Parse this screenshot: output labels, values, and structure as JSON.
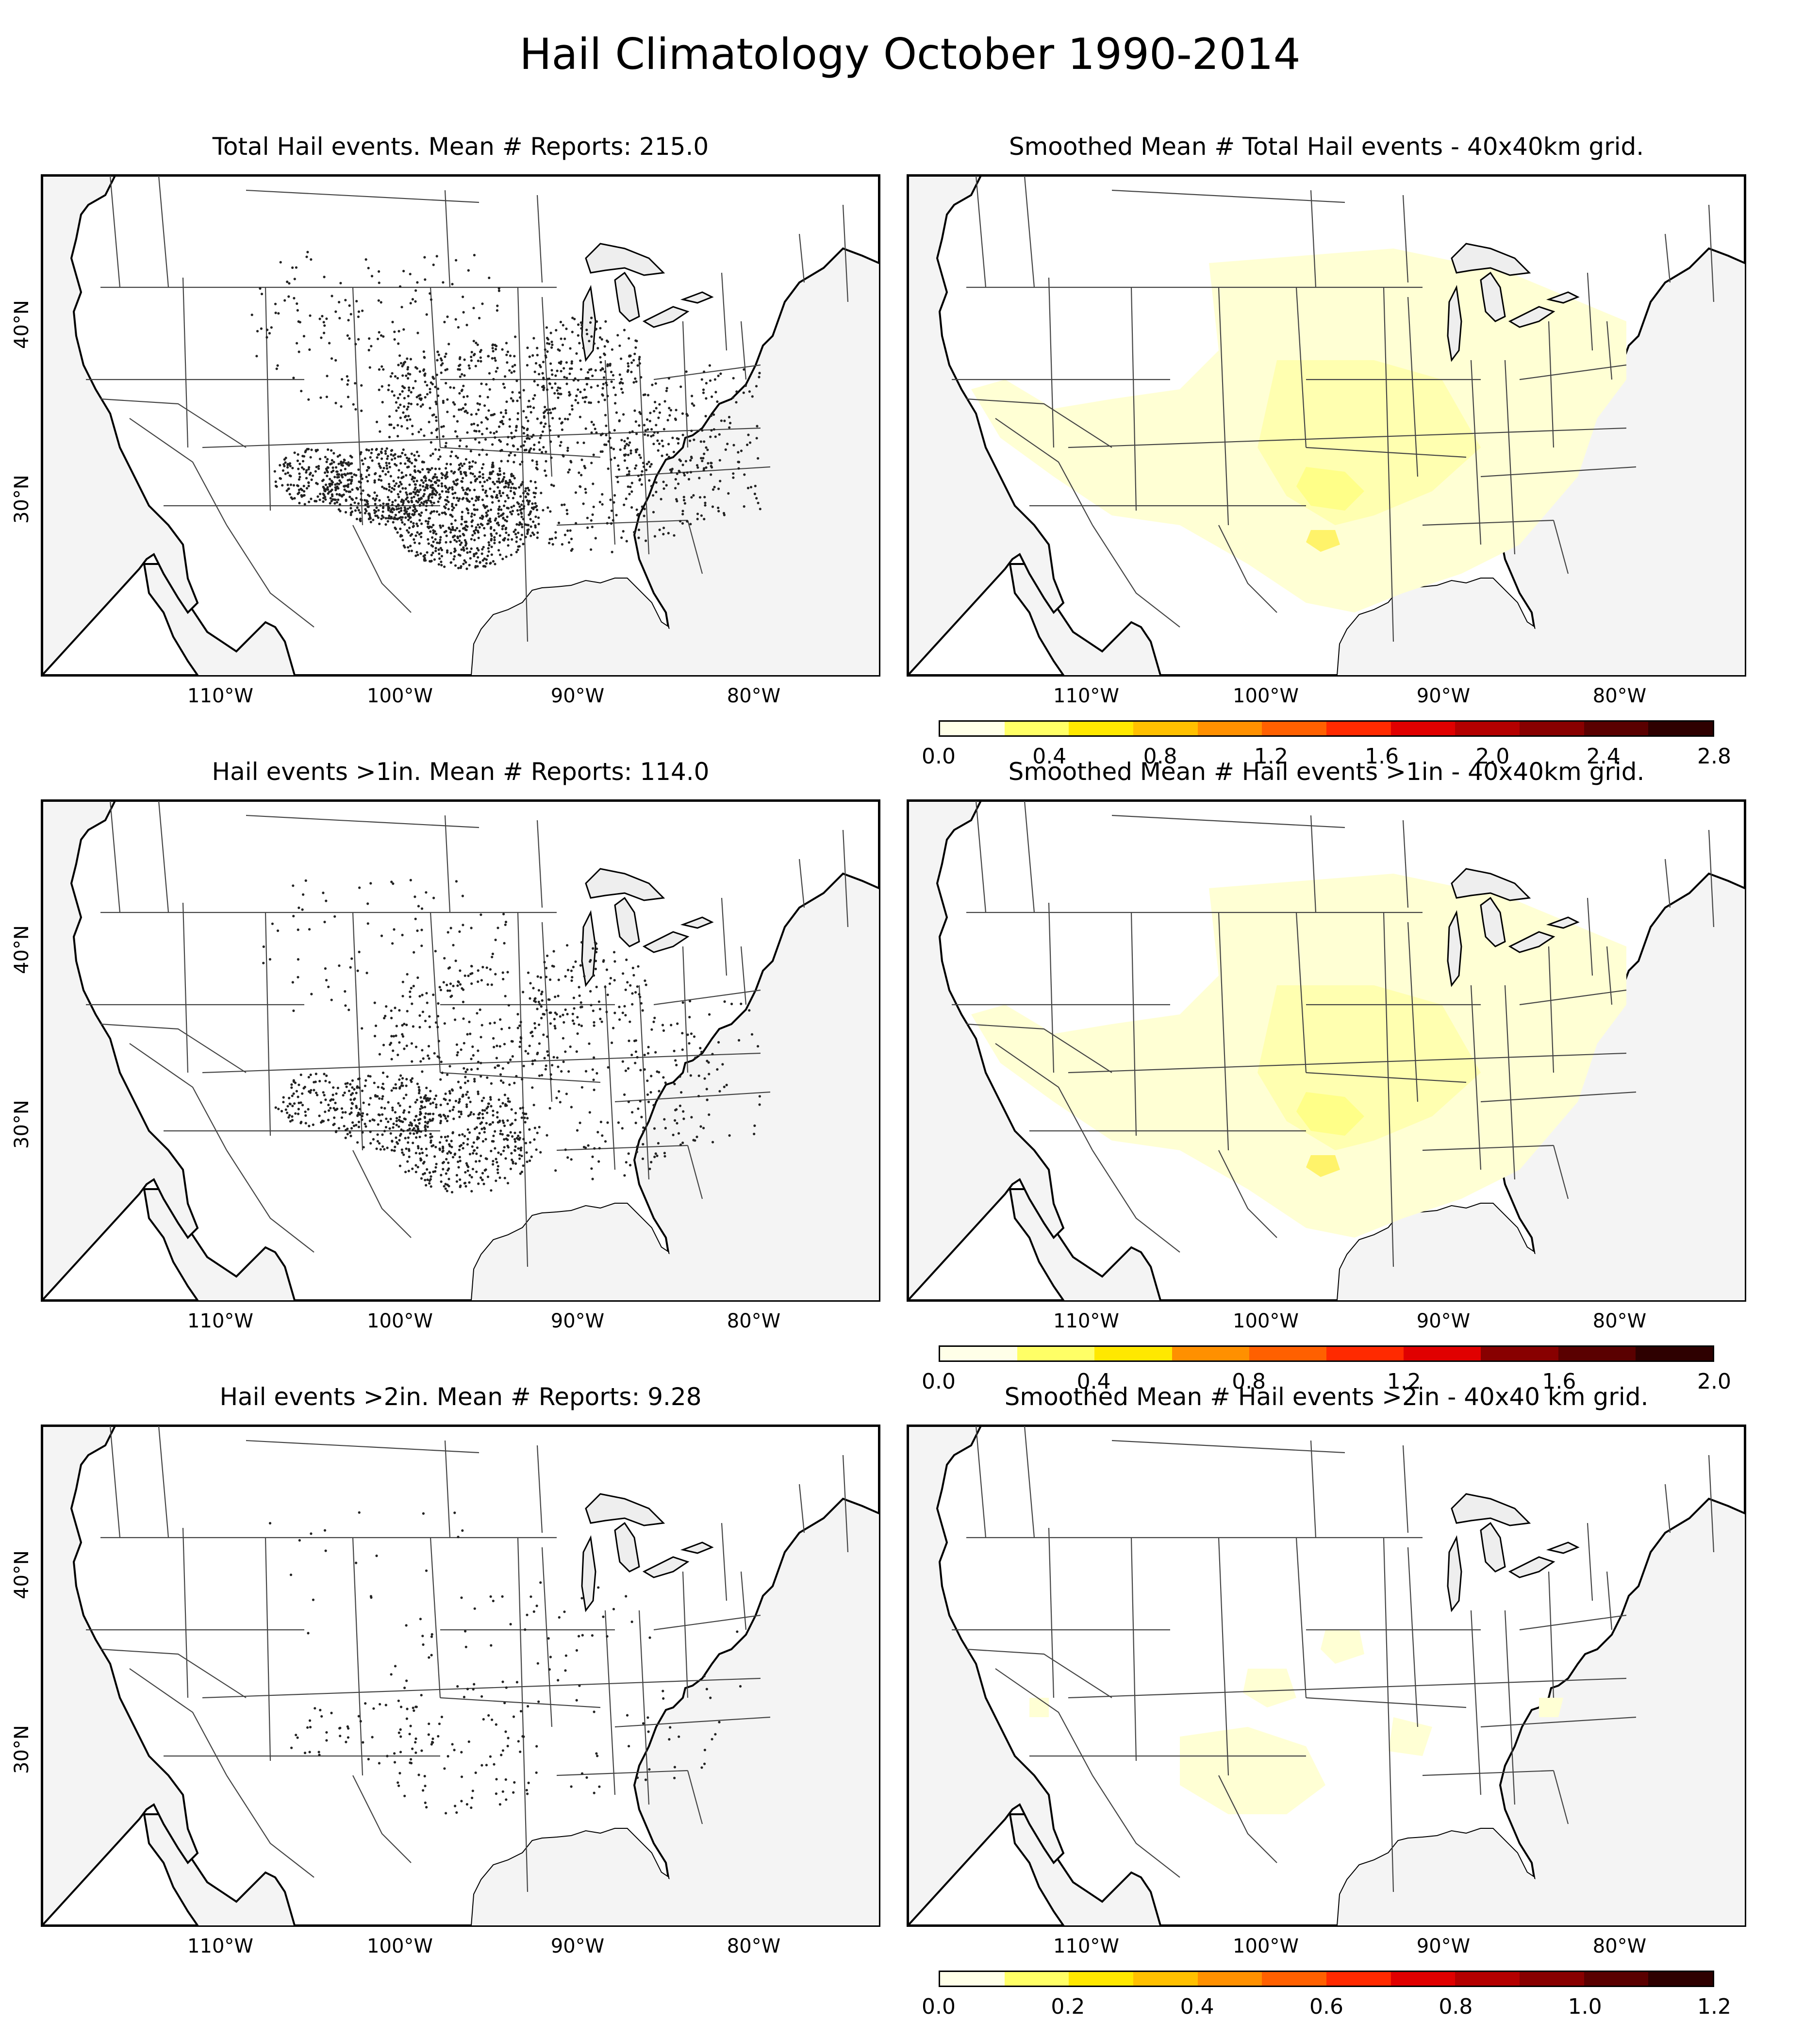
{
  "figure_title": "Hail Climatology October 1990-2014",
  "lon_ticks": [
    "110°W",
    "100°W",
    "90°W",
    "80°W"
  ],
  "lat_ticks": [
    "40°N",
    "30°N"
  ],
  "panels": [
    {
      "title": "Total Hail events. Mean # Reports: 215.0",
      "kind": "points",
      "count": 2400
    },
    {
      "title": "Smoothed Mean # Total Hail events - 40x40km grid.",
      "kind": "smooth",
      "intensity": 1.0,
      "colorbar": {
        "ticks": [
          "0.0",
          "0.4",
          "0.8",
          "1.2",
          "1.6",
          "2.0",
          "2.4",
          "2.8"
        ],
        "bins": 12
      }
    },
    {
      "title": "Hail events >1in. Mean # Reports: 114.0",
      "kind": "points",
      "count": 1300
    },
    {
      "title": "Smoothed Mean # Hail events >1in - 40x40km grid.",
      "kind": "smooth",
      "intensity": 0.9,
      "colorbar": {
        "ticks": [
          "0.0",
          "0.4",
          "0.8",
          "1.2",
          "1.6",
          "2.0"
        ],
        "bins": 10
      }
    },
    {
      "title": "Hail events >2in. Mean # Reports: 9.28",
      "kind": "points",
      "count": 240
    },
    {
      "title": "Smoothed Mean # Hail events >2in - 40x40 km grid.",
      "kind": "smooth",
      "intensity": 0.35,
      "colorbar": {
        "ticks": [
          "0.0",
          "0.2",
          "0.4",
          "0.6",
          "0.8",
          "1.0",
          "1.2"
        ],
        "bins": 12
      }
    }
  ],
  "colors": {
    "ocean": "#f4f4f4",
    "land": "#ffffff",
    "lake": "#eeeeee",
    "smooth_fill": [
      "#ffffd4",
      "#ffffb0",
      "#ffff88",
      "#fff36a"
    ],
    "cmap": [
      "#ffffe8",
      "#ffff66",
      "#ffe800",
      "#ffc000",
      "#ff9000",
      "#ff6000",
      "#ff2a00",
      "#e00000",
      "#b40000",
      "#880000",
      "#5a0000",
      "#2e0000"
    ]
  }
}
